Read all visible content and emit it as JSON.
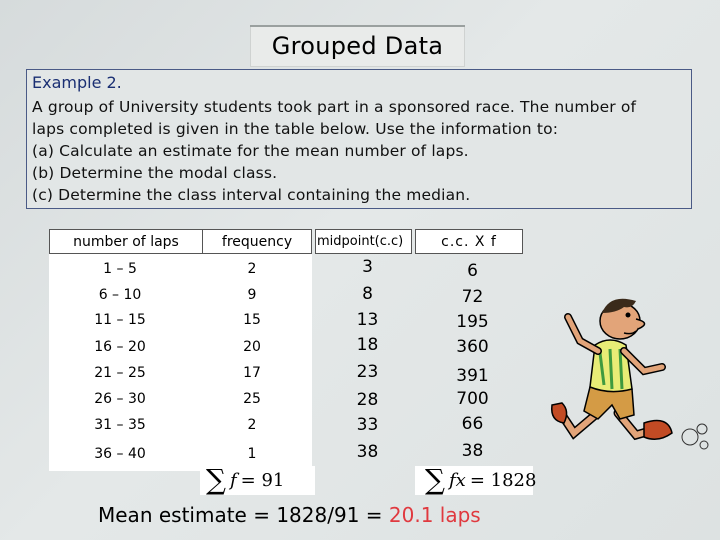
{
  "title": "Grouped Data",
  "example": {
    "heading": "Example 2.",
    "lines": [
      "A group of University students took part in a sponsored race. The number of",
      "laps completed is given in the table below. Use the information to:",
      "(a) Calculate an estimate for the mean number of laps.",
      "(b) Determine the modal class.",
      "(c) Determine the class interval containing the median."
    ]
  },
  "table": {
    "headers": [
      "number of laps",
      "frequency",
      "midpoint(c.c)",
      "c.c. X f"
    ],
    "rows": [
      [
        "1 – 5",
        "2",
        "3",
        "6"
      ],
      [
        "6 – 10",
        "9",
        "8",
        "72"
      ],
      [
        "11 – 15",
        "15",
        "13",
        "195"
      ],
      [
        "16 – 20",
        "20",
        "18",
        "360"
      ],
      [
        "21 – 25",
        "17",
        "23",
        "391"
      ],
      [
        "26 – 30",
        "25",
        "28",
        "700"
      ],
      [
        "31 – 35",
        "2",
        "33",
        "66"
      ],
      [
        "36 – 40",
        "1",
        "38",
        "38"
      ]
    ],
    "sum_f": {
      "symbol": "∑",
      "var": "f",
      "rest": "= 91"
    },
    "sum_fx": {
      "symbol": "∑",
      "var": "fx",
      "rest": "= 1828"
    }
  },
  "mean": {
    "prefix": "Mean estimate = 1828/91 = ",
    "result": "20.1 laps"
  }
}
